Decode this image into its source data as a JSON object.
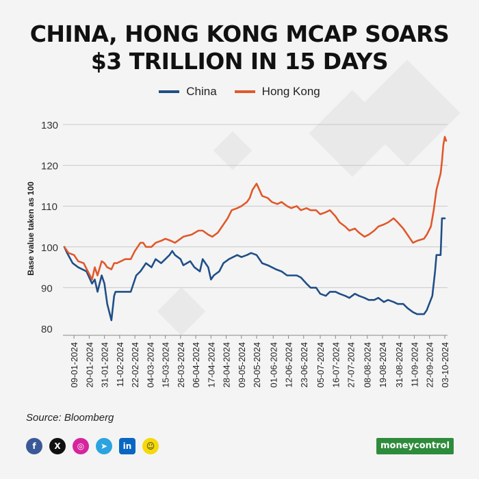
{
  "title_line1": "CHINA, HONG KONG MCAP SOARS",
  "title_line2": "$3 TRILLION IN 15 DAYS",
  "source": "Source: Bloomberg",
  "brand": "moneycontrol",
  "colors": {
    "china": "#1f4e87",
    "hong_kong": "#e0582b",
    "grid": "#c8c8c8",
    "text": "#222222"
  },
  "social_icons": [
    "facebook-icon",
    "x-icon",
    "instagram-icon",
    "telegram-icon",
    "linkedin-icon",
    "snapchat-icon"
  ],
  "chart_data": {
    "type": "line",
    "xlabel": "",
    "ylabel": "Base value taken as 100",
    "ylim": [
      80,
      130
    ],
    "yticks": [
      80,
      90,
      100,
      110,
      120,
      130
    ],
    "grid": true,
    "legend_position": "top-center",
    "x_ticks": [
      "09-01-2024",
      "20-01-2024",
      "31-01-2024",
      "11-02-2024",
      "22-02-2024",
      "04-03-2024",
      "15-03-2024",
      "26-03-2024",
      "06-04-2024",
      "17-04-2024",
      "28-04-2024",
      "09-05-2024",
      "20-05-2024",
      "01-06-2024",
      "12-06-2024",
      "23-06-2024",
      "05-07-2024",
      "16-07-2024",
      "27-07-2024",
      "08-08-2024",
      "19-08-2024",
      "31-08-2024",
      "11-09-2024",
      "22-09-2024",
      "03-10-2024"
    ],
    "series": [
      {
        "name": "China",
        "points": [
          [
            "2024-01-02",
            100
          ],
          [
            "2024-01-04",
            98.5
          ],
          [
            "2024-01-08",
            96
          ],
          [
            "2024-01-12",
            95
          ],
          [
            "2024-01-15",
            94.5
          ],
          [
            "2024-01-18",
            94
          ],
          [
            "2024-01-22",
            91
          ],
          [
            "2024-01-24",
            92
          ],
          [
            "2024-01-26",
            89
          ],
          [
            "2024-01-29",
            93
          ],
          [
            "2024-01-31",
            91
          ],
          [
            "2024-02-02",
            86
          ],
          [
            "2024-02-05",
            82
          ],
          [
            "2024-02-07",
            88
          ],
          [
            "2024-02-08",
            89
          ],
          [
            "2024-02-19",
            89
          ],
          [
            "2024-02-21",
            91
          ],
          [
            "2024-02-23",
            93
          ],
          [
            "2024-02-26",
            94
          ],
          [
            "2024-02-28",
            95
          ],
          [
            "2024-03-01",
            96
          ],
          [
            "2024-03-05",
            95
          ],
          [
            "2024-03-08",
            97
          ],
          [
            "2024-03-12",
            96
          ],
          [
            "2024-03-15",
            97
          ],
          [
            "2024-03-18",
            98
          ],
          [
            "2024-03-20",
            99
          ],
          [
            "2024-03-22",
            98
          ],
          [
            "2024-03-26",
            97
          ],
          [
            "2024-03-28",
            95.5
          ],
          [
            "2024-04-02",
            96.5
          ],
          [
            "2024-04-05",
            95
          ],
          [
            "2024-04-09",
            94
          ],
          [
            "2024-04-11",
            97
          ],
          [
            "2024-04-15",
            95
          ],
          [
            "2024-04-17",
            92
          ],
          [
            "2024-04-19",
            93
          ],
          [
            "2024-04-23",
            94
          ],
          [
            "2024-04-26",
            96
          ],
          [
            "2024-04-30",
            97
          ],
          [
            "2024-05-06",
            98
          ],
          [
            "2024-05-09",
            97.5
          ],
          [
            "2024-05-13",
            98
          ],
          [
            "2024-05-16",
            98.5
          ],
          [
            "2024-05-20",
            98
          ],
          [
            "2024-05-24",
            96
          ],
          [
            "2024-05-28",
            95.5
          ],
          [
            "2024-06-03",
            94.5
          ],
          [
            "2024-06-07",
            94
          ],
          [
            "2024-06-11",
            93
          ],
          [
            "2024-06-14",
            93
          ],
          [
            "2024-06-18",
            93
          ],
          [
            "2024-06-21",
            92.5
          ],
          [
            "2024-06-25",
            91
          ],
          [
            "2024-06-28",
            90
          ],
          [
            "2024-07-02",
            90
          ],
          [
            "2024-07-05",
            88.5
          ],
          [
            "2024-07-09",
            88
          ],
          [
            "2024-07-12",
            89
          ],
          [
            "2024-07-16",
            89
          ],
          [
            "2024-07-19",
            88.5
          ],
          [
            "2024-07-23",
            88
          ],
          [
            "2024-07-26",
            87.5
          ],
          [
            "2024-07-30",
            88.5
          ],
          [
            "2024-08-02",
            88
          ],
          [
            "2024-08-06",
            87.5
          ],
          [
            "2024-08-09",
            87
          ],
          [
            "2024-08-13",
            87
          ],
          [
            "2024-08-16",
            87.5
          ],
          [
            "2024-08-20",
            86.5
          ],
          [
            "2024-08-23",
            87
          ],
          [
            "2024-08-27",
            86.5
          ],
          [
            "2024-08-30",
            86
          ],
          [
            "2024-09-03",
            86
          ],
          [
            "2024-09-06",
            85
          ],
          [
            "2024-09-10",
            84
          ],
          [
            "2024-09-13",
            83.5
          ],
          [
            "2024-09-18",
            83.5
          ],
          [
            "2024-09-20",
            84.5
          ],
          [
            "2024-09-24",
            88
          ],
          [
            "2024-09-26",
            94
          ],
          [
            "2024-09-27",
            98
          ],
          [
            "2024-09-30",
            98
          ],
          [
            "2024-10-01",
            107
          ],
          [
            "2024-10-03",
            107
          ]
        ]
      },
      {
        "name": "Hong Kong",
        "points": [
          [
            "2024-01-02",
            100
          ],
          [
            "2024-01-05",
            98.5
          ],
          [
            "2024-01-09",
            98
          ],
          [
            "2024-01-12",
            96.5
          ],
          [
            "2024-01-16",
            96
          ],
          [
            "2024-01-19",
            94
          ],
          [
            "2024-01-22",
            92
          ],
          [
            "2024-01-24",
            95
          ],
          [
            "2024-01-26",
            93
          ],
          [
            "2024-01-29",
            96.5
          ],
          [
            "2024-01-31",
            96
          ],
          [
            "2024-02-02",
            95
          ],
          [
            "2024-02-05",
            94.5
          ],
          [
            "2024-02-07",
            96
          ],
          [
            "2024-02-09",
            96
          ],
          [
            "2024-02-15",
            97
          ],
          [
            "2024-02-19",
            97
          ],
          [
            "2024-02-22",
            99
          ],
          [
            "2024-02-26",
            101
          ],
          [
            "2024-02-28",
            101
          ],
          [
            "2024-03-01",
            100
          ],
          [
            "2024-03-05",
            100
          ],
          [
            "2024-03-08",
            101
          ],
          [
            "2024-03-12",
            101.5
          ],
          [
            "2024-03-15",
            102
          ],
          [
            "2024-03-19",
            101.5
          ],
          [
            "2024-03-22",
            101
          ],
          [
            "2024-03-26",
            102
          ],
          [
            "2024-03-28",
            102.5
          ],
          [
            "2024-04-03",
            103
          ],
          [
            "2024-04-08",
            104
          ],
          [
            "2024-04-11",
            104
          ],
          [
            "2024-04-15",
            103
          ],
          [
            "2024-04-18",
            102.5
          ],
          [
            "2024-04-22",
            103.5
          ],
          [
            "2024-04-25",
            105
          ],
          [
            "2024-04-29",
            107
          ],
          [
            "2024-05-02",
            109
          ],
          [
            "2024-05-06",
            109.5
          ],
          [
            "2024-05-09",
            110
          ],
          [
            "2024-05-13",
            111
          ],
          [
            "2024-05-15",
            112
          ],
          [
            "2024-05-17",
            114
          ],
          [
            "2024-05-20",
            115.5
          ],
          [
            "2024-05-22",
            114
          ],
          [
            "2024-05-24",
            112.5
          ],
          [
            "2024-05-28",
            112
          ],
          [
            "2024-05-31",
            111
          ],
          [
            "2024-06-04",
            110.5
          ],
          [
            "2024-06-07",
            111
          ],
          [
            "2024-06-11",
            110
          ],
          [
            "2024-06-14",
            109.5
          ],
          [
            "2024-06-18",
            110
          ],
          [
            "2024-06-21",
            109
          ],
          [
            "2024-06-25",
            109.5
          ],
          [
            "2024-06-28",
            109
          ],
          [
            "2024-07-02",
            109
          ],
          [
            "2024-07-05",
            108
          ],
          [
            "2024-07-09",
            108.5
          ],
          [
            "2024-07-12",
            109
          ],
          [
            "2024-07-16",
            107.5
          ],
          [
            "2024-07-19",
            106
          ],
          [
            "2024-07-23",
            105
          ],
          [
            "2024-07-26",
            104
          ],
          [
            "2024-07-30",
            104.5
          ],
          [
            "2024-08-02",
            103.5
          ],
          [
            "2024-08-06",
            102.5
          ],
          [
            "2024-08-09",
            103
          ],
          [
            "2024-08-13",
            104
          ],
          [
            "2024-08-16",
            105
          ],
          [
            "2024-08-20",
            105.5
          ],
          [
            "2024-08-23",
            106
          ],
          [
            "2024-08-27",
            107
          ],
          [
            "2024-08-30",
            106
          ],
          [
            "2024-09-03",
            104.5
          ],
          [
            "2024-09-06",
            103
          ],
          [
            "2024-09-10",
            101
          ],
          [
            "2024-09-13",
            101.5
          ],
          [
            "2024-09-18",
            102
          ],
          [
            "2024-09-20",
            103
          ],
          [
            "2024-09-23",
            105
          ],
          [
            "2024-09-25",
            109
          ],
          [
            "2024-09-27",
            114
          ],
          [
            "2024-09-30",
            118
          ],
          [
            "2024-10-01",
            121
          ],
          [
            "2024-10-02",
            125
          ],
          [
            "2024-10-03",
            127
          ],
          [
            "2024-10-04",
            126
          ]
        ]
      }
    ]
  }
}
